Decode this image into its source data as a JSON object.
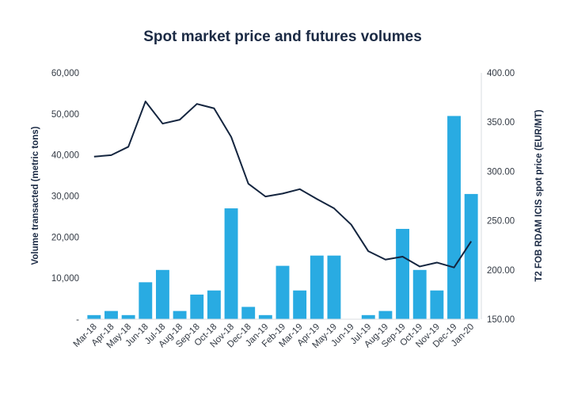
{
  "chart_data": {
    "type": "bar+line",
    "title": "Spot market price and futures volumes",
    "categories": [
      "Mar-18",
      "Apr-18",
      "May-18",
      "Jun-18",
      "Jul-18",
      "Aug-18",
      "Sep-18",
      "Oct-18",
      "Nov-18",
      "Dec-18",
      "Jan-19",
      "Feb-19",
      "Mar-19",
      "Apr-19",
      "May-19",
      "Jun-19",
      "Jul-19",
      "Aug-19",
      "Sep-19",
      "Oct-19",
      "Nov-19",
      "Dec-19",
      "Jan-20"
    ],
    "series": [
      {
        "type": "bar",
        "axis": "left",
        "values": [
          1000,
          2000,
          1000,
          9000,
          12000,
          2000,
          6000,
          7000,
          27000,
          3000,
          1000,
          13000,
          7000,
          15500,
          15500,
          0,
          1000,
          2000,
          22000,
          12000,
          7000,
          49500,
          30500
        ],
        "color": "#29abe2"
      },
      {
        "type": "line",
        "axis": "right",
        "values": [
          315,
          316.5,
          325,
          371,
          348.5,
          352.5,
          368.5,
          364,
          335,
          287.5,
          274.5,
          277.5,
          282,
          272,
          262.5,
          246,
          219,
          210.5,
          213.5,
          203.5,
          207.5,
          202.5,
          229
        ],
        "color": "#14253f"
      }
    ],
    "y_left": {
      "label": "Volume transacted (metric tons)",
      "range": [
        0,
        60000
      ],
      "ticks": [
        "-",
        "10,000",
        "20,000",
        "30,000",
        "40,000",
        "50,000",
        "60,000"
      ]
    },
    "y_right": {
      "label": "T2 FOB RDAM ICIS spot price (EUR/MT)",
      "range": [
        150,
        400
      ],
      "ticks": [
        "150.00",
        "200.00",
        "250.00",
        "300.00",
        "350.00",
        "400.00"
      ]
    },
    "grid": false,
    "legend": "none"
  }
}
